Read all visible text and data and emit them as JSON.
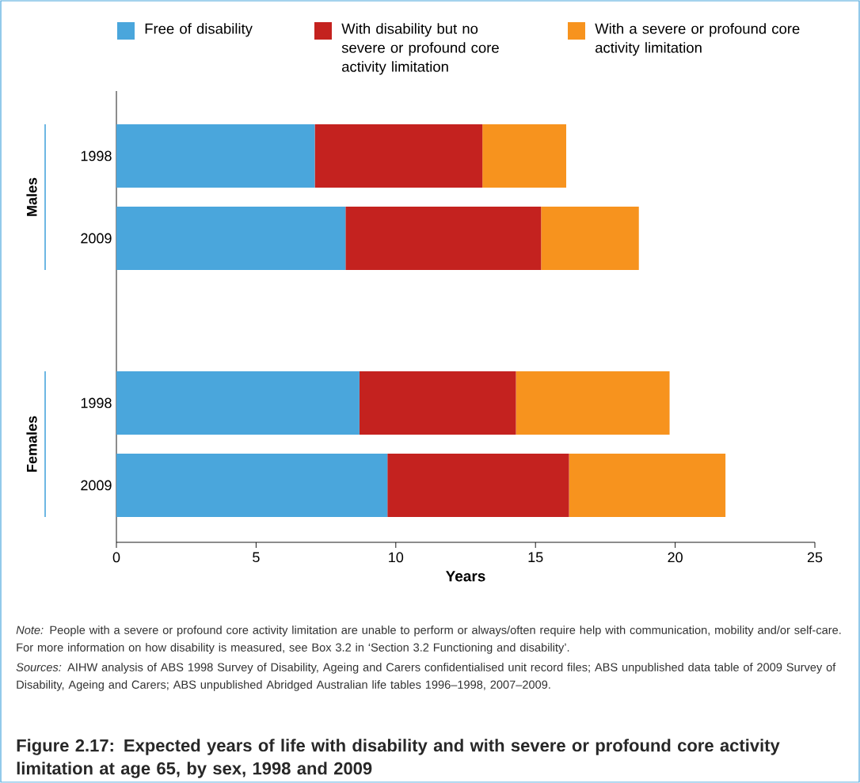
{
  "chart_data": {
    "type": "bar",
    "orientation": "horizontal",
    "stacked": true,
    "title": "Figure 2.17: Expected years of life with disability and with severe or profound core activity limitation at age 65, by sex, 1998 and 2009",
    "xlabel": "Years",
    "categories": [
      "1998",
      "2009",
      null,
      "1998",
      "2009"
    ],
    "series": [
      {
        "name": "Free of disability",
        "color": "#4aa6dc",
        "values": [
          7.1,
          8.2,
          null,
          8.7,
          9.7
        ]
      },
      {
        "name": "With disability but no severe or profound core activity limitation",
        "color": "#c4221f",
        "values": [
          6.0,
          7.0,
          null,
          5.6,
          6.5
        ]
      },
      {
        "name": "With a severe or profound core activity limitation",
        "color": "#f7931e",
        "values": [
          3.0,
          3.5,
          null,
          5.5,
          5.6
        ]
      }
    ],
    "xlim": [
      0,
      25
    ],
    "xticks": [
      0,
      5,
      10,
      15,
      20,
      25
    ],
    "legend": "top",
    "annotations": [
      "Males",
      "Females",
      "*Note:* People with a severe or profound core activity limitation are unable to perform or always/often require help with communication, mobility and/or self-care. For more information on how disability is measured, see Box 3.2 in ‘Section 3.2 Functioning and disability’.",
      "*Sources:* AIHW analysis of ABS 1998 Survey of Disability, Ageing and Carers confidentialised unit record files; ABS unpublished data table of 2009 Survey of Disability, Ageing and Carers; ABS unpublished Abridged Australian life tables 1996–1998, 2007–2009."
    ]
  }
}
